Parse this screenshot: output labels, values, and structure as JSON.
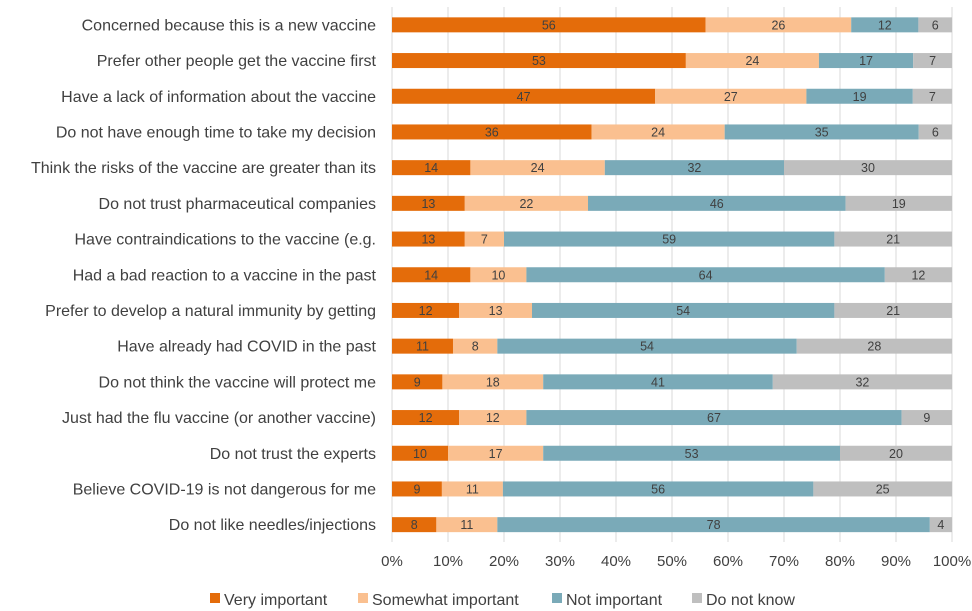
{
  "chart_data": {
    "type": "bar",
    "orientation": "horizontal",
    "stacked": "percent",
    "categories": [
      "Concerned because this is a new vaccine",
      "Prefer other people get the vaccine first",
      "Have a lack of information about the vaccine",
      "Do not have enough time to take my decision",
      "Think the risks of the vaccine are greater than its",
      "Do not trust pharmaceutical companies",
      "Have contraindications to the vaccine (e.g.",
      "Had a bad reaction to a vaccine in the past",
      "Prefer to develop a natural immunity by getting",
      "Have already had COVID in the past",
      "Do not think the vaccine will protect me",
      "Just had the flu vaccine (or another vaccine)",
      "Do not trust the experts",
      "Believe COVID-19 is not dangerous for me",
      "Do not like needles/injections"
    ],
    "series": [
      {
        "name": "Very important",
        "color": "#e46c0a",
        "values": [
          56,
          53,
          47,
          36,
          14,
          13,
          13,
          14,
          12,
          11,
          9,
          12,
          10,
          9,
          8
        ]
      },
      {
        "name": "Somewhat important",
        "color": "#fac090",
        "values": [
          26,
          24,
          27,
          24,
          24,
          22,
          7,
          10,
          13,
          8,
          18,
          12,
          17,
          11,
          11
        ]
      },
      {
        "name": "Not important",
        "color": "#7aaab8",
        "values": [
          12,
          17,
          19,
          35,
          32,
          46,
          59,
          64,
          54,
          54,
          41,
          67,
          53,
          56,
          78
        ]
      },
      {
        "name": "Do not know",
        "color": "#bfbfbf",
        "values": [
          6,
          7,
          7,
          6,
          30,
          19,
          21,
          12,
          21,
          28,
          32,
          9,
          20,
          25,
          4
        ]
      }
    ],
    "xlim": [
      0,
      100
    ],
    "x_ticks": [
      "0%",
      "10%",
      "20%",
      "30%",
      "40%",
      "50%",
      "60%",
      "70%",
      "80%",
      "90%",
      "100%"
    ],
    "grid": true,
    "legend_position": "bottom"
  }
}
